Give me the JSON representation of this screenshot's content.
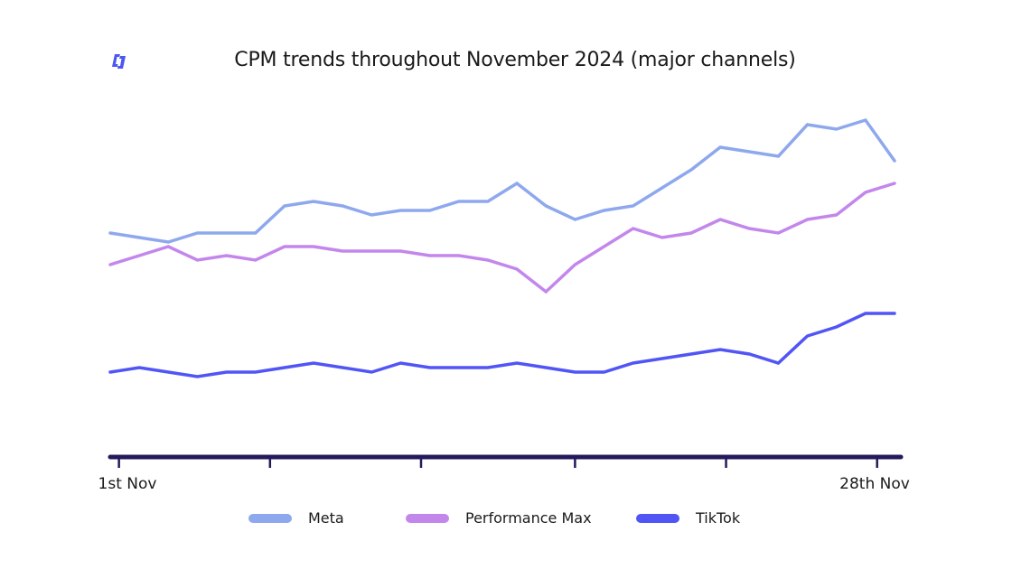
{
  "brand": {
    "logo_icon": "bracket-logo-icon",
    "logo_color": "#4a57f0"
  },
  "chart_data": {
    "type": "line",
    "title": "CPM trends throughout November 2024 (major channels)",
    "xlabel": "",
    "ylabel": "",
    "y_axis_visible": false,
    "y_units_note": "relative CPM index (no y-axis labels shown)",
    "x": [
      1,
      2,
      3,
      4,
      5,
      6,
      7,
      8,
      9,
      10,
      11,
      12,
      13,
      14,
      15,
      16,
      17,
      18,
      19,
      20,
      21,
      22,
      23,
      24,
      25,
      26,
      27,
      28
    ],
    "x_tick_labels": [
      {
        "day": 1,
        "label": "1st Nov"
      },
      {
        "day": 28,
        "label": "28th Nov"
      }
    ],
    "x_tick_marks": [
      1.3,
      6.5,
      11.7,
      17,
      22.2,
      27.4
    ],
    "ylim": [
      0,
      400
    ],
    "grid": false,
    "legend_position": "bottom",
    "series": [
      {
        "name": "Meta",
        "color": "#8ea8ee",
        "values": [
          248,
          243,
          238,
          248,
          248,
          248,
          278,
          283,
          278,
          268,
          273,
          273,
          283,
          283,
          303,
          278,
          263,
          273,
          278,
          298,
          318,
          343,
          338,
          333,
          368,
          363,
          373,
          328
        ]
      },
      {
        "name": "Performance Max",
        "color": "#c387ec",
        "values": [
          213,
          223,
          233,
          218,
          223,
          218,
          233,
          233,
          228,
          228,
          228,
          223,
          223,
          218,
          208,
          183,
          213,
          233,
          253,
          243,
          248,
          263,
          253,
          248,
          263,
          268,
          293,
          303
        ]
      },
      {
        "name": "TikTok",
        "color": "#5155f5",
        "values": [
          94,
          99,
          94,
          89,
          94,
          94,
          99,
          104,
          99,
          94,
          104,
          99,
          99,
          99,
          104,
          99,
          94,
          94,
          104,
          109,
          114,
          119,
          114,
          104,
          134,
          144,
          159,
          159
        ]
      }
    ],
    "axis_color": "#231a5c"
  }
}
